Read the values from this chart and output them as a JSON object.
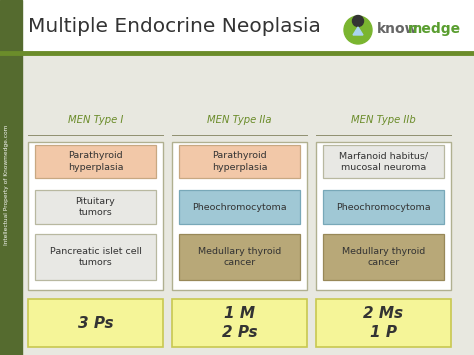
{
  "title": "Multiple Endocrine Neoplasia",
  "bg_color": "#efefef",
  "header_bg_color": "#ffffff",
  "header_bar_color": "#556b2f",
  "header_line_color": "#6b8c2a",
  "left_bar_color": "#556b2f",
  "columns": [
    {
      "header": "MEN Type I",
      "boxes": [
        {
          "text": "Parathyroid\nhyperplasia",
          "color": "#f2c8a8",
          "border": "#c8a882"
        },
        {
          "text": "Pituitary\ntumors",
          "color": "#e8e8e4",
          "border": "#b8b8a0"
        },
        {
          "text": "Pancreatic islet cell\ntumors",
          "color": "#e8e8e4",
          "border": "#b8b8a0"
        }
      ],
      "summary": "3 Ps",
      "summary_color": "#f5f598",
      "summary_border": "#c8c850"
    },
    {
      "header": "MEN Type IIa",
      "boxes": [
        {
          "text": "Parathyroid\nhyperplasia",
          "color": "#f2c8a8",
          "border": "#c8a882"
        },
        {
          "text": "Pheochromocytoma",
          "color": "#a0c8d5",
          "border": "#78a8b8"
        },
        {
          "text": "Medullary thyroid\ncancer",
          "color": "#b8a878",
          "border": "#988858"
        }
      ],
      "summary": "1 M\n2 Ps",
      "summary_color": "#f5f598",
      "summary_border": "#c8c850"
    },
    {
      "header": "MEN Type IIb",
      "boxes": [
        {
          "text": "Marfanoid habitus/\nmucosal neuroma",
          "color": "#e8e8e4",
          "border": "#b8b8a0"
        },
        {
          "text": "Pheochromocytoma",
          "color": "#a0c8d5",
          "border": "#78a8b8"
        },
        {
          "text": "Medullary thyroid\ncancer",
          "color": "#b8a878",
          "border": "#988858"
        }
      ],
      "summary": "2 Ms\n1 P",
      "summary_color": "#f5f598",
      "summary_border": "#c8c850"
    }
  ],
  "watermark": "Intellectual Property of Knowmedge.com",
  "know_color": "#666666",
  "medge_color": "#5a9e30",
  "outer_border_color": "#b0b090",
  "col_bg_color": "#ffffff"
}
